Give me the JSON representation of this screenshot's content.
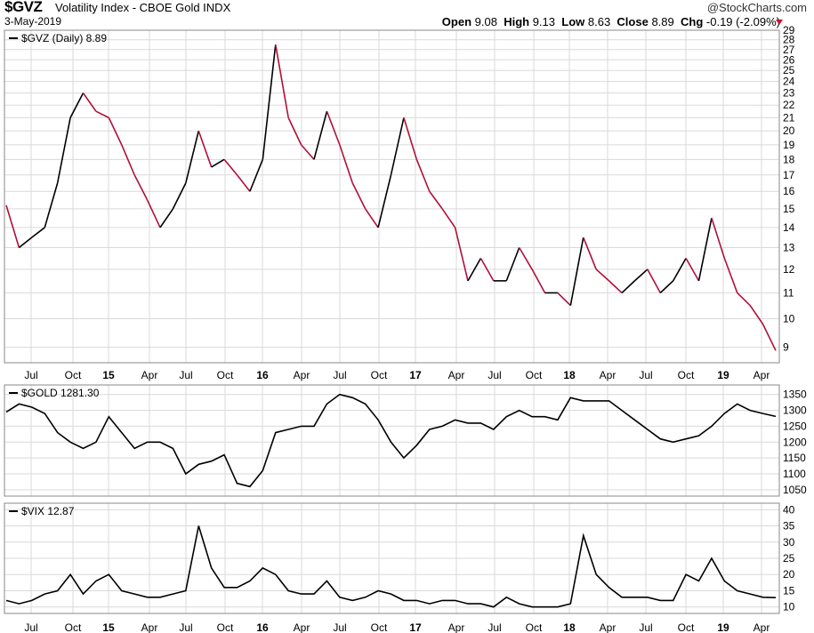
{
  "header": {
    "symbol": "$GVZ",
    "name": "Volatility Index - CBOE Gold  INDX",
    "date": "3-May-2019",
    "brand": "@StockCharts.com",
    "open_label": "Open",
    "open": "9.08",
    "high_label": "High",
    "high": "9.13",
    "low_label": "Low",
    "low": "8.63",
    "close_label": "Close",
    "close": "8.89",
    "chg_label": "Chg",
    "chg": "-0.19 (-2.09%)"
  },
  "colors": {
    "gvz_up": "#000000",
    "gvz_down": "#b0103a",
    "line": "#000000",
    "grid": "#d9d9d9"
  },
  "chart_data": [
    {
      "type": "line",
      "legend": "$GVZ (Daily) 8.89",
      "log_scale": true,
      "ylim": [
        8.5,
        29
      ],
      "yticks": [
        "9",
        "10",
        "11",
        "12",
        "13",
        "14",
        "15",
        "16",
        "17",
        "18",
        "19",
        "20",
        "21",
        "22",
        "23",
        "24",
        "25",
        "26",
        "27",
        "28",
        "29"
      ],
      "x_ticks": [
        "Jul",
        "Oct",
        "15",
        "Apr",
        "Jul",
        "Oct",
        "16",
        "Apr",
        "Jul",
        "Oct",
        "17",
        "Apr",
        "Jul",
        "Oct",
        "18",
        "Apr",
        "Jul",
        "Oct",
        "19",
        "Apr"
      ],
      "bold_ticks": [
        "15",
        "16",
        "17",
        "18",
        "19"
      ],
      "x": [
        "2014-05",
        "2014-06",
        "2014-07",
        "2014-08",
        "2014-09",
        "2014-10",
        "2014-11",
        "2014-12",
        "2015-01",
        "2015-02",
        "2015-03",
        "2015-04",
        "2015-05",
        "2015-06",
        "2015-07",
        "2015-08",
        "2015-09",
        "2015-10",
        "2015-11",
        "2015-12",
        "2016-01",
        "2016-02",
        "2016-03",
        "2016-04",
        "2016-05",
        "2016-06",
        "2016-07",
        "2016-08",
        "2016-09",
        "2016-10",
        "2016-11",
        "2016-12",
        "2017-01",
        "2017-02",
        "2017-03",
        "2017-04",
        "2017-05",
        "2017-06",
        "2017-07",
        "2017-08",
        "2017-09",
        "2017-10",
        "2017-11",
        "2017-12",
        "2018-01",
        "2018-02",
        "2018-03",
        "2018-04",
        "2018-05",
        "2018-06",
        "2018-07",
        "2018-08",
        "2018-09",
        "2018-10",
        "2018-11",
        "2018-12",
        "2019-01",
        "2019-02",
        "2019-03",
        "2019-04",
        "2019-05"
      ],
      "values": [
        15.2,
        13.0,
        13.5,
        14.0,
        16.5,
        21.0,
        23.0,
        21.5,
        21.0,
        19.0,
        17.0,
        15.5,
        14.0,
        15.0,
        16.5,
        20.0,
        17.5,
        18.0,
        17.0,
        16.0,
        18.0,
        27.5,
        21.0,
        19.0,
        18.0,
        21.5,
        19.0,
        16.5,
        15.0,
        14.0,
        17.0,
        21.0,
        18.0,
        16.0,
        15.0,
        14.0,
        11.5,
        12.5,
        11.5,
        11.5,
        13.0,
        12.0,
        11.0,
        11.0,
        10.5,
        13.5,
        12.0,
        11.5,
        11.0,
        11.5,
        12.0,
        11.0,
        11.5,
        12.5,
        11.5,
        14.5,
        12.5,
        11.0,
        10.5,
        9.8,
        8.89
      ]
    },
    {
      "type": "line",
      "legend": "$GOLD 1281.30",
      "ylim": [
        1030,
        1380
      ],
      "yticks": [
        "1050",
        "1100",
        "1150",
        "1200",
        "1250",
        "1300",
        "1350"
      ],
      "values": [
        1295,
        1320,
        1310,
        1290,
        1230,
        1200,
        1180,
        1200,
        1280,
        1230,
        1180,
        1200,
        1200,
        1180,
        1100,
        1130,
        1140,
        1160,
        1070,
        1060,
        1110,
        1230,
        1240,
        1250,
        1250,
        1320,
        1350,
        1340,
        1320,
        1270,
        1200,
        1150,
        1190,
        1240,
        1250,
        1270,
        1260,
        1260,
        1240,
        1280,
        1300,
        1280,
        1280,
        1270,
        1340,
        1330,
        1330,
        1330,
        1300,
        1270,
        1240,
        1210,
        1200,
        1210,
        1220,
        1250,
        1290,
        1320,
        1300,
        1290,
        1281
      ]
    },
    {
      "type": "line",
      "legend": "$VIX 12.87",
      "ylim": [
        8,
        42
      ],
      "yticks": [
        "10",
        "15",
        "20",
        "25",
        "30",
        "35",
        "40"
      ],
      "values": [
        12,
        11,
        12,
        14,
        15,
        20,
        14,
        18,
        20,
        15,
        14,
        13,
        13,
        14,
        15,
        35,
        22,
        16,
        16,
        18,
        22,
        20,
        15,
        14,
        14,
        18,
        13,
        12,
        13,
        15,
        14,
        12,
        12,
        11,
        12,
        12,
        11,
        11,
        10,
        13,
        11,
        10,
        10,
        10,
        11,
        32,
        20,
        16,
        13,
        13,
        13,
        12,
        12,
        20,
        18,
        25,
        18,
        15,
        14,
        13,
        12.87
      ]
    }
  ]
}
